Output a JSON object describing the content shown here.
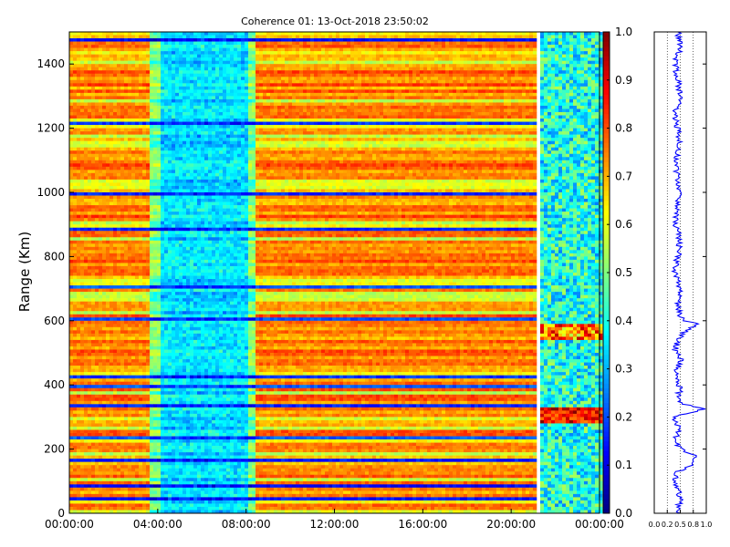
{
  "chart_data": [
    {
      "type": "heatmap",
      "title": "Coherence 01: 13-Oct-2018 23:50:02",
      "ylabel": "Range (Km)",
      "xlabel": "",
      "ylim": [
        0,
        1500
      ],
      "x_range": [
        "00:00:00",
        "24:00:00"
      ],
      "x_ticks": [
        "00:00:00",
        "04:00:00",
        "08:00:00",
        "12:00:00",
        "16:00:00",
        "20:00:00",
        "00:00:00"
      ],
      "y_ticks": [
        "0",
        "200",
        "400",
        "600",
        "800",
        "1000",
        "1200",
        "1400"
      ],
      "data_end_time_hours": 21.0,
      "low_coherence_window_hours": [
        4.0,
        8.0
      ],
      "colormap": "jet",
      "colorbar": {
        "range": [
          0.0,
          1.0
        ],
        "ticks": [
          "0.0",
          "0.1",
          "0.2",
          "0.3",
          "0.4",
          "0.5",
          "0.6",
          "0.7",
          "0.8",
          "0.9",
          "1.0"
        ]
      }
    },
    {
      "type": "line",
      "title": "",
      "xlabel": "",
      "ylabel": "",
      "xlim": [
        0.0,
        1.0
      ],
      "ylim": [
        0,
        1500
      ],
      "x_ticks": [
        "0.0",
        "0.2",
        "0.5",
        "0.8",
        "1.0"
      ],
      "grid": true,
      "color": "#0000ff",
      "series": [
        {
          "y": [
            0,
            50,
            100,
            130,
            150,
            180,
            200,
            230,
            260,
            300,
            310,
            325,
            340,
            360,
            390,
            420,
            450,
            480,
            510,
            540,
            570,
            590,
            600,
            620,
            650,
            700,
            750,
            800,
            850,
            900,
            950,
            1000,
            1050,
            1100,
            1150,
            1200,
            1250,
            1300,
            1350,
            1400,
            1450,
            1500
          ],
          "x": [
            0.45,
            0.5,
            0.4,
            0.45,
            0.7,
            0.8,
            0.5,
            0.4,
            0.5,
            0.35,
            0.6,
            0.95,
            0.55,
            0.45,
            0.5,
            0.4,
            0.45,
            0.5,
            0.4,
            0.45,
            0.6,
            0.85,
            0.55,
            0.5,
            0.45,
            0.5,
            0.4,
            0.45,
            0.5,
            0.4,
            0.45,
            0.5,
            0.45,
            0.4,
            0.5,
            0.45,
            0.4,
            0.5,
            0.45,
            0.4,
            0.5,
            0.45
          ]
        }
      ]
    }
  ]
}
